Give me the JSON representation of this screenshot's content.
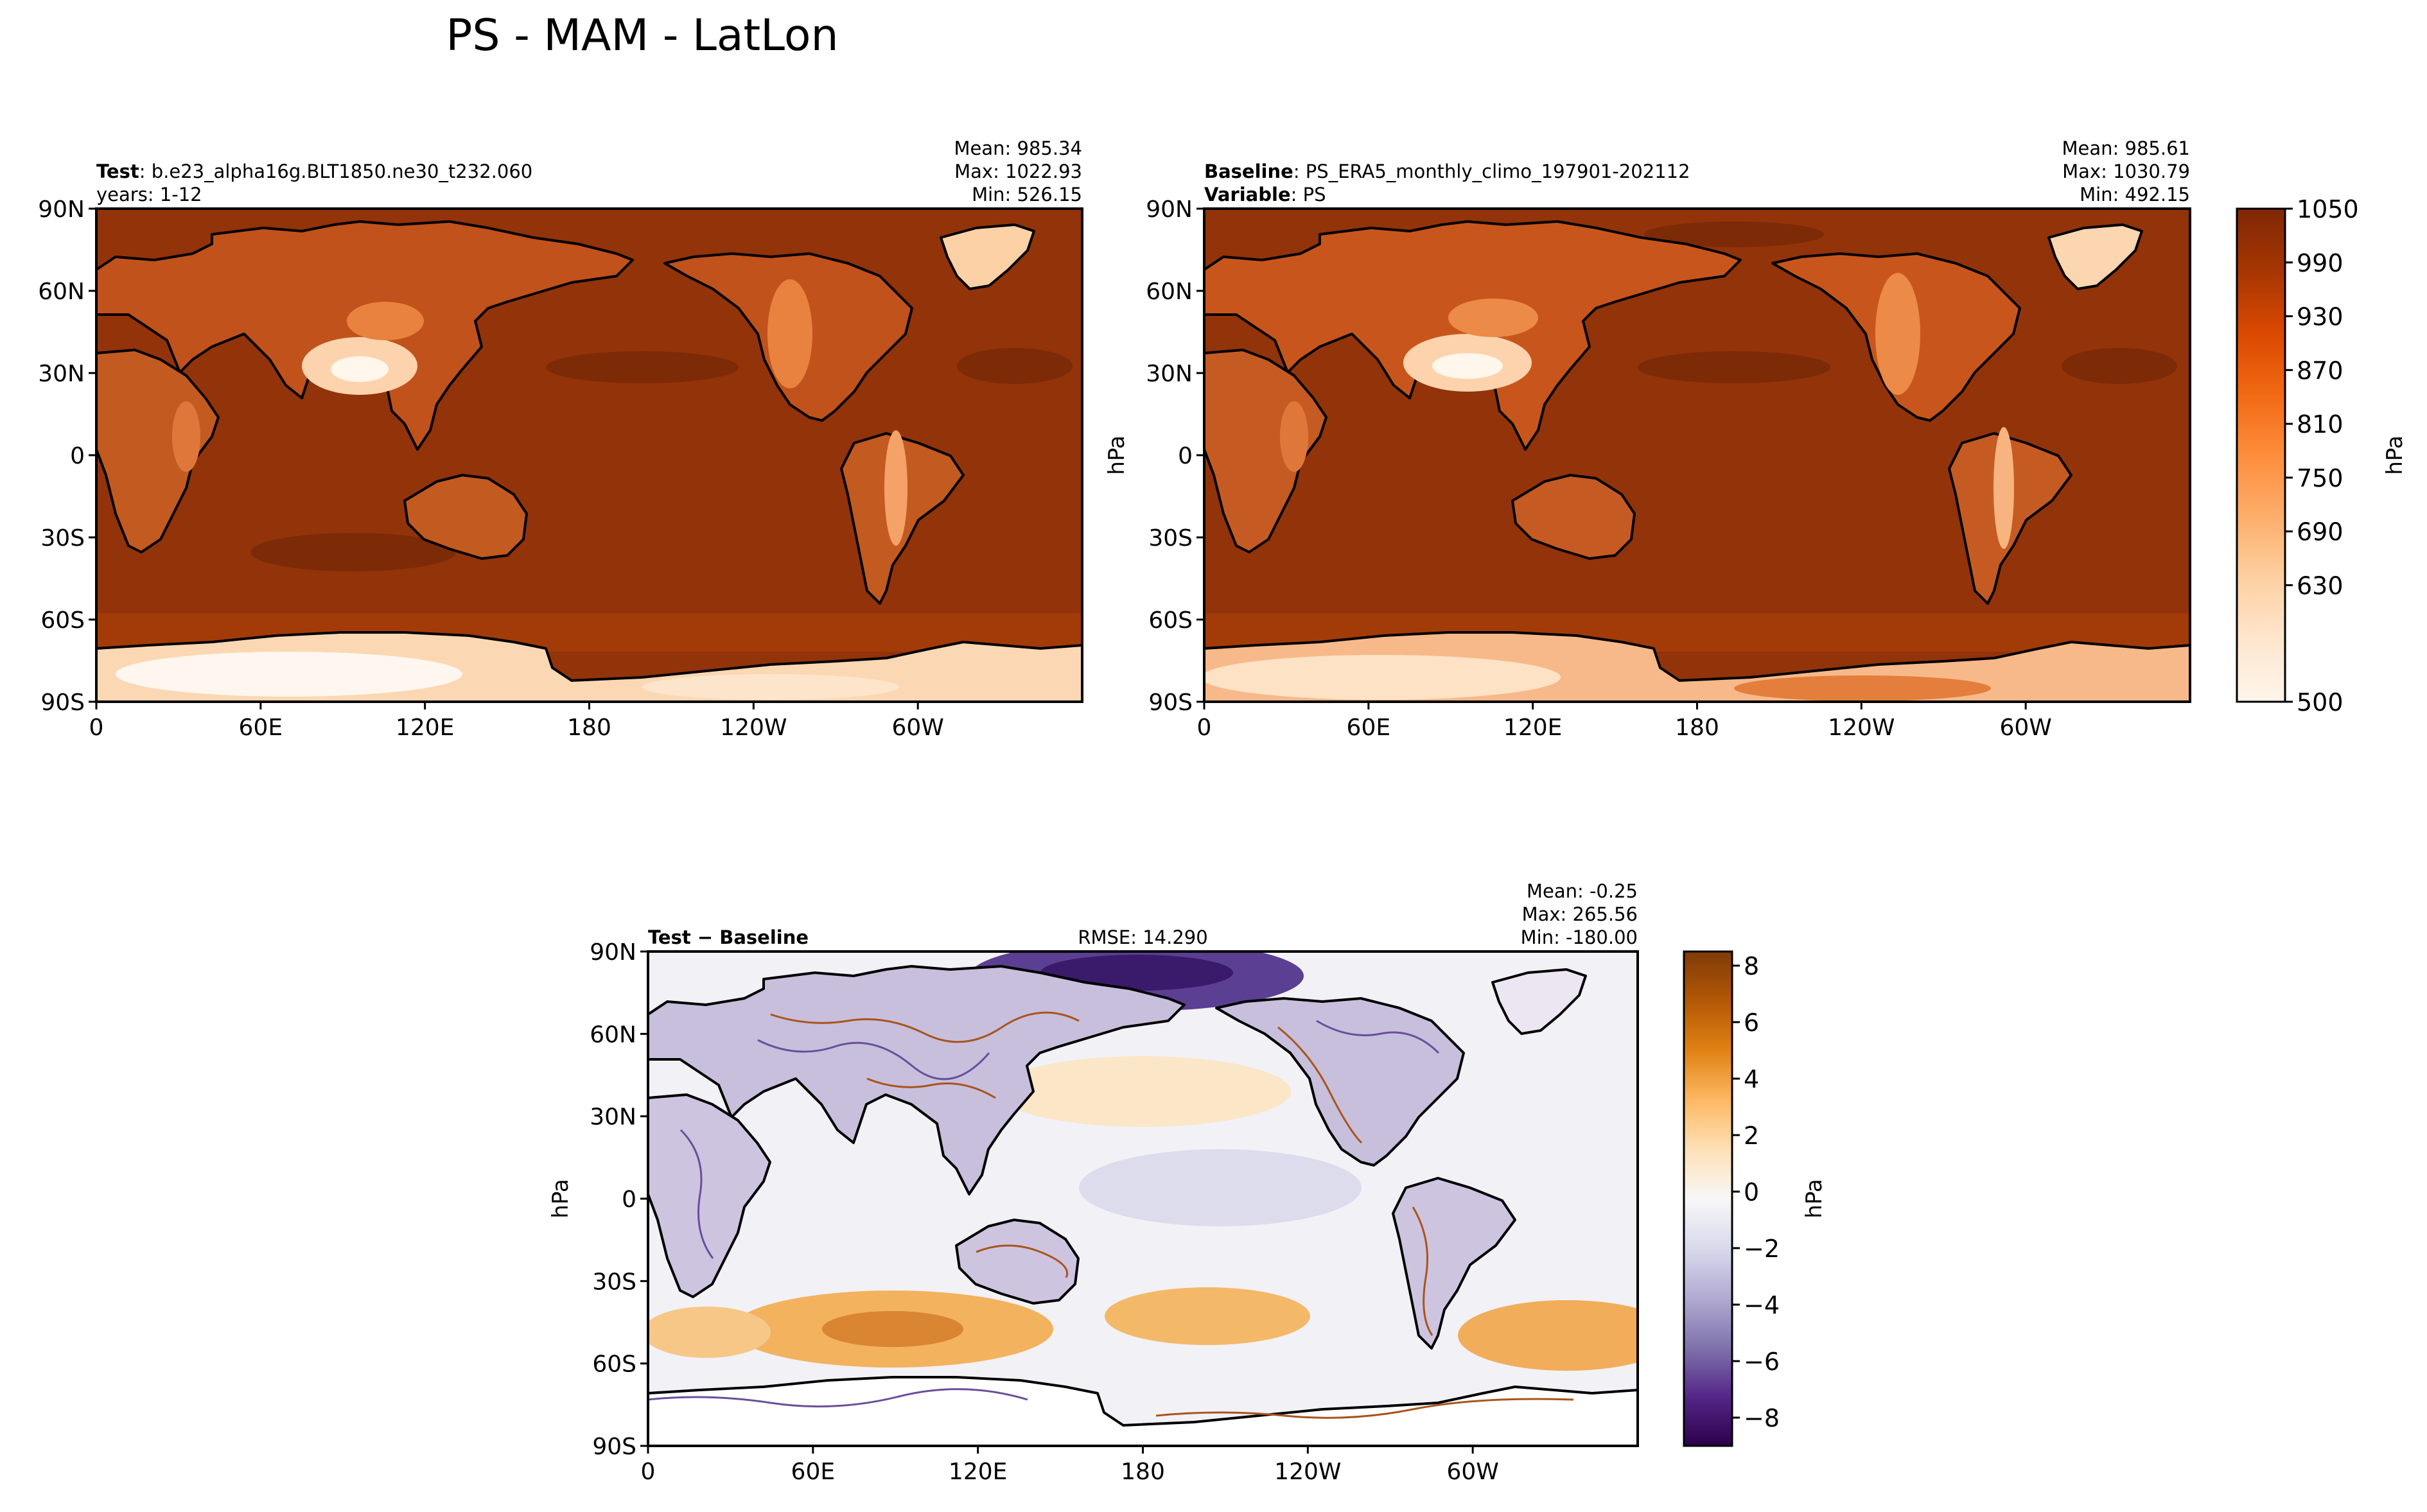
{
  "figure": {
    "title": "PS - MAM - LatLon"
  },
  "chart_data": [
    {
      "type": "heatmap",
      "panel": "test",
      "header_left": [
        {
          "bold": "Test",
          "text": ": b.e23_alpha16g.BLT1850.ne30_t232.060"
        },
        {
          "bold": "",
          "text": "years: 1-12"
        }
      ],
      "header_center": "",
      "stats": [
        "Mean: 985.34",
        "Max: 1022.93",
        "Min: 526.15"
      ],
      "ylabel": "",
      "x_ticks": [
        "0",
        "60E",
        "120E",
        "180",
        "120W",
        "60W"
      ],
      "y_ticks": [
        "90N",
        "60N",
        "30N",
        "0",
        "30S",
        "60S",
        "90S"
      ],
      "xlim": [
        0,
        360
      ],
      "ylim": [
        -90,
        90
      ]
    },
    {
      "type": "heatmap",
      "panel": "baseline",
      "header_left": [
        {
          "bold": "Baseline",
          "text": ": PS_ERA5_monthly_climo_197901-202112"
        },
        {
          "bold": "Variable",
          "text": ": PS"
        }
      ],
      "header_center": "",
      "stats": [
        "Mean: 985.61",
        "Max: 1030.79",
        "Min: 492.15"
      ],
      "ylabel": "hPa",
      "x_ticks": [
        "0",
        "60E",
        "120E",
        "180",
        "120W",
        "60W"
      ],
      "y_ticks": [
        "90N",
        "60N",
        "30N",
        "0",
        "30S",
        "60S",
        "90S"
      ],
      "xlim": [
        0,
        360
      ],
      "ylim": [
        -90,
        90
      ]
    },
    {
      "type": "heatmap",
      "panel": "difference",
      "header_left": [
        {
          "bold": "Test − Baseline",
          "text": ""
        }
      ],
      "header_center": "RMSE: 14.290",
      "stats": [
        "Mean: -0.25",
        "Max: 265.56",
        "Min: -180.00"
      ],
      "ylabel": "hPa",
      "x_ticks": [
        "0",
        "60E",
        "120E",
        "180",
        "120W",
        "60W"
      ],
      "y_ticks": [
        "90N",
        "60N",
        "30N",
        "0",
        "30S",
        "60S",
        "90S"
      ],
      "xlim": [
        0,
        360
      ],
      "ylim": [
        -90,
        90
      ]
    }
  ],
  "colorbars": [
    {
      "name": "ps",
      "label": "hPa",
      "range": [
        500,
        1050
      ],
      "ticks": [
        "1050",
        "990",
        "930",
        "870",
        "810",
        "750",
        "690",
        "630",
        "500"
      ],
      "colors": [
        "#fff5eb",
        "#fee6ce",
        "#fdd0a2",
        "#fdae6b",
        "#fd8d3c",
        "#f16913",
        "#d94801",
        "#a63603",
        "#7f2704"
      ]
    },
    {
      "name": "diff",
      "label": "hPa",
      "range": [
        -9,
        8.5
      ],
      "ticks": [
        "8",
        "6",
        "4",
        "2",
        "0",
        "−2",
        "−4",
        "−6",
        "−8"
      ],
      "colors": [
        "#2d004b",
        "#542788",
        "#8073ac",
        "#b2abd2",
        "#d8daeb",
        "#f7f7f7",
        "#fee0b6",
        "#fdb863",
        "#e08214",
        "#b35806",
        "#7f3b08"
      ]
    }
  ]
}
